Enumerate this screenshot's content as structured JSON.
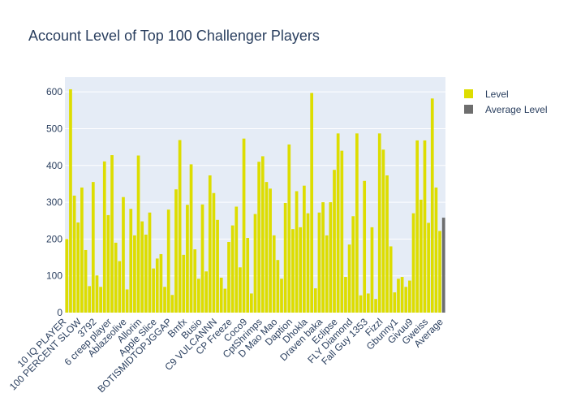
{
  "chart_data": {
    "type": "bar",
    "title": "Account Level of Top 100 Challenger Players",
    "xlabel": "",
    "ylabel": "",
    "ylim": [
      0,
      640
    ],
    "yticks": [
      0,
      100,
      200,
      300,
      400,
      500,
      600
    ],
    "grid": true,
    "legend_position": "top-right",
    "series": [
      {
        "name": "Level",
        "color": "#dddd00",
        "values": [
          200,
          607,
          318,
          245,
          340,
          170,
          72,
          355,
          101,
          70,
          411,
          265,
          428,
          190,
          140,
          314,
          63,
          282,
          210,
          427,
          248,
          212,
          272,
          120,
          147,
          159,
          70,
          280,
          48,
          335,
          469,
          157,
          293,
          403,
          172,
          92,
          294,
          112,
          373,
          325,
          252,
          95,
          65,
          192,
          237,
          288,
          123,
          473,
          203,
          52,
          268,
          410,
          425,
          355,
          337,
          210,
          143,
          92,
          298,
          457,
          227,
          330,
          232,
          345,
          270,
          597,
          66,
          272,
          300,
          210,
          300,
          388,
          487,
          440,
          97,
          185,
          262,
          487,
          47,
          358,
          52,
          232,
          37,
          487,
          443,
          373,
          180,
          55,
          92,
          97,
          70,
          87,
          270,
          468,
          307,
          468,
          244,
          582,
          340,
          222
        ]
      },
      {
        "name": "Average Level",
        "color": "#6e6e6e",
        "values": [
          258
        ]
      }
    ],
    "x_tick_labels": [
      "10 IQ PLAYER",
      "100 PERCENT SLOW",
      "3792",
      "6 creep player",
      "Ablazeolive",
      "Allorim",
      "Apple Slice",
      "BOTISMIDTOPJGGAP",
      "Bmfx",
      "Busio",
      "C9 VULCANNN",
      "CP Freeze",
      "Coco9",
      "CptShrimps",
      "D Mao Mao",
      "Daption",
      "Dhokla",
      "Draven baka",
      "Eclipse",
      "FLY Diamond",
      "Fall Guy 1353",
      "Fizzl",
      "Gbunny1",
      "Givuu9",
      "Gweiss",
      "Average"
    ],
    "x_tick_positions": [
      0,
      4,
      8,
      12,
      16,
      20,
      24,
      28,
      32,
      36,
      40,
      44,
      48,
      52,
      56,
      60,
      64,
      68,
      72,
      76,
      80,
      84,
      88,
      92,
      96,
      100
    ]
  }
}
